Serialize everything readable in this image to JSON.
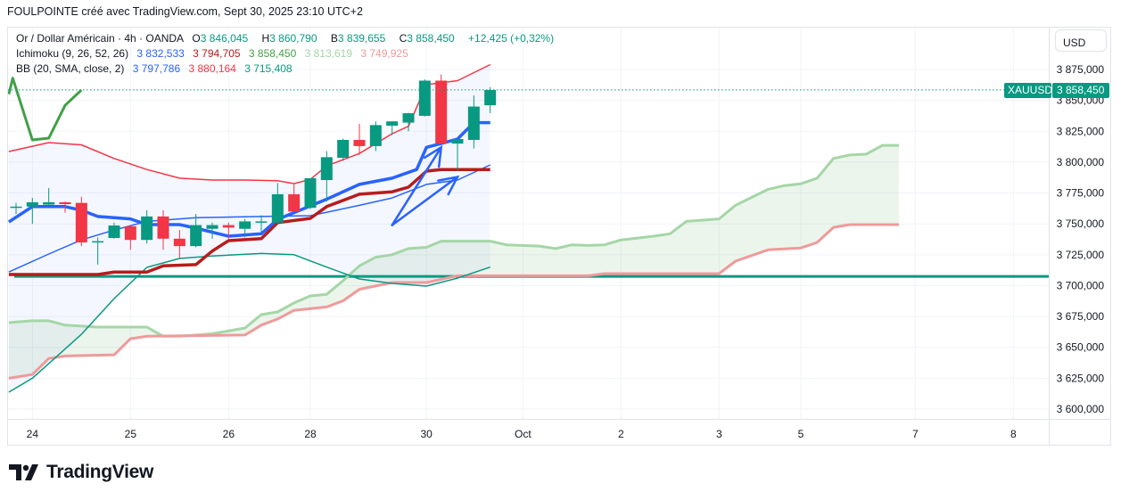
{
  "header": {
    "title": "FOULPOINTE créé avec TradingView.com, Sept 30, 2025 23:10 UTC+2"
  },
  "legend": {
    "symbol": "Or / Dollar Américain · 4h · OANDA",
    "open_label": "O",
    "open": "3 846,045",
    "high_label": "H",
    "high": "3 860,790",
    "low_label": "B",
    "low": "3 839,655",
    "close_label": "C",
    "close": "3 858,450",
    "change": "+12,425 (+0,32%)",
    "ichimoku_label": "Ichimoku (9, 26, 52, 26)",
    "ichimoku_values": [
      "3 832,533",
      "3 794,705",
      "3 858,450",
      "3 813,619",
      "3 749,925"
    ],
    "bb_label": "BB (20, SMA, close, 2)",
    "bb_values": [
      "3 797,786",
      "3 880,164",
      "3 715,408"
    ]
  },
  "currency_button": "USD",
  "price_tag": {
    "symbol": "XAUUSD",
    "price": "3 858,450"
  },
  "colors": {
    "up": "#089981",
    "down": "#f23645",
    "tenkan": "#2962ff",
    "kijun": "#b71c1c",
    "chikou": "#43a047",
    "spanA": "#a5d6a7",
    "spanB": "#ef9a9a",
    "bb_basis": "#2962ff",
    "bb_upper": "#f23645",
    "bb_lower": "#089981"
  },
  "brand": "TradingView",
  "chart_data": {
    "type": "candlestick",
    "title": "Or / Dollar Américain · 4h · OANDA",
    "ylim": [
      3590,
      3890
    ],
    "y_ticks": [
      "3 875,000",
      "3 850,000",
      "3 825,000",
      "3 800,000",
      "3 775,000",
      "3 750,000",
      "3 725,000",
      "3 700,000",
      "3 675,000",
      "3 650,000",
      "3 625,000",
      "3 600,000"
    ],
    "y_tick_values": [
      3875,
      3850,
      3825,
      3800,
      3775,
      3750,
      3725,
      3700,
      3675,
      3650,
      3625,
      3600
    ],
    "x_ticks": [
      {
        "label": "24",
        "bar": 1
      },
      {
        "label": "25",
        "bar": 7
      },
      {
        "label": "26",
        "bar": 13
      },
      {
        "label": "28",
        "bar": 18
      },
      {
        "label": "30",
        "bar": 25.1
      },
      {
        "label": "Oct",
        "bar": 31
      },
      {
        "label": "2",
        "bar": 37
      },
      {
        "label": "3",
        "bar": 43
      },
      {
        "label": "5",
        "bar": 48
      },
      {
        "label": "7",
        "bar": 55
      },
      {
        "label": "8",
        "bar": 61
      }
    ],
    "candles_ohlc": [
      [
        3764,
        3767,
        3758,
        3764
      ],
      [
        3764,
        3771,
        3750,
        3767.5
      ],
      [
        3765.6,
        3779,
        3765,
        3767.5
      ],
      [
        3767.5,
        3768,
        3759,
        3766
      ],
      [
        3767,
        3772,
        3732,
        3735
      ],
      [
        3736,
        3739,
        3717,
        3736
      ],
      [
        3738.6,
        3751,
        3738,
        3748.7
      ],
      [
        3748,
        3748.5,
        3729,
        3737
      ],
      [
        3737,
        3761,
        3734,
        3756
      ],
      [
        3756,
        3761,
        3729,
        3738
      ],
      [
        3738,
        3745,
        3722,
        3732
      ],
      [
        3732,
        3758,
        3731,
        3749
      ],
      [
        3746,
        3751,
        3738,
        3749
      ],
      [
        3749,
        3751,
        3738,
        3747
      ],
      [
        3746,
        3754,
        3739,
        3752
      ],
      [
        3752,
        3757,
        3743,
        3752
      ],
      [
        3751,
        3783,
        3750,
        3774
      ],
      [
        3774,
        3782,
        3760,
        3760
      ],
      [
        3763,
        3787,
        3762,
        3787
      ],
      [
        3785.5,
        3809,
        3768,
        3804
      ],
      [
        3803.5,
        3819,
        3801,
        3818
      ],
      [
        3818,
        3831,
        3806,
        3813
      ],
      [
        3813,
        3833,
        3809,
        3830
      ],
      [
        3829.5,
        3833,
        3822,
        3833
      ],
      [
        3832,
        3840,
        3825,
        3839.6
      ],
      [
        3837.5,
        3867,
        3837,
        3866
      ],
      [
        3866,
        3871,
        3815,
        3815
      ],
      [
        3815,
        3819,
        3793,
        3818.7
      ],
      [
        3818,
        3854,
        3811,
        3845
      ],
      [
        3846.045,
        3860.79,
        3839.655,
        3858.45
      ]
    ],
    "last_price": 3858.45,
    "horizontal_line": 3707.5,
    "series": [
      {
        "name": "Tenkan",
        "width": 3.5,
        "color": "#2962ff",
        "points": [
          [
            -0.44,
            3751.6
          ],
          [
            1,
            3764
          ],
          [
            3,
            3764
          ],
          [
            4,
            3761
          ],
          [
            5,
            3756
          ],
          [
            7,
            3754
          ],
          [
            8,
            3749.4
          ],
          [
            10,
            3749.4
          ],
          [
            11,
            3746.5
          ],
          [
            13,
            3740
          ],
          [
            15,
            3742
          ],
          [
            16,
            3753.7
          ],
          [
            19,
            3770
          ],
          [
            21,
            3782
          ],
          [
            23,
            3787
          ],
          [
            24.5,
            3794
          ],
          [
            25.1,
            3812
          ],
          [
            26,
            3815
          ],
          [
            27,
            3818.7
          ],
          [
            28,
            3832
          ],
          [
            29,
            3832
          ]
        ]
      },
      {
        "name": "Kijun",
        "width": 3.5,
        "color": "#b71c1c",
        "points": [
          [
            -0.44,
            3709
          ],
          [
            5,
            3709
          ],
          [
            6,
            3711
          ],
          [
            8,
            3711
          ],
          [
            9,
            3716
          ],
          [
            11,
            3717
          ],
          [
            12,
            3728
          ],
          [
            13,
            3736.4
          ],
          [
            15,
            3738
          ],
          [
            16,
            3751
          ],
          [
            18,
            3754.5
          ],
          [
            19,
            3764
          ],
          [
            21,
            3774
          ],
          [
            23,
            3776
          ],
          [
            24,
            3779.7
          ],
          [
            25.1,
            3792.7
          ],
          [
            26,
            3794
          ],
          [
            29,
            3794
          ]
        ]
      },
      {
        "name": "BB basis",
        "width": 1.5,
        "color": "#2962ff",
        "points": [
          [
            -0.44,
            3711
          ],
          [
            2,
            3725.6
          ],
          [
            4,
            3737
          ],
          [
            6,
            3745
          ],
          [
            8,
            3752
          ],
          [
            11,
            3755
          ],
          [
            15,
            3756
          ],
          [
            18,
            3756.6
          ],
          [
            21,
            3765
          ],
          [
            23,
            3771
          ],
          [
            25.1,
            3782
          ],
          [
            27,
            3785.5
          ],
          [
            29,
            3797.8
          ]
        ]
      },
      {
        "name": "BB upper",
        "width": 1.5,
        "color": "#f23645",
        "points": [
          [
            -0.44,
            3808.6
          ],
          [
            2,
            3815.8
          ],
          [
            4,
            3814
          ],
          [
            6,
            3803
          ],
          [
            8,
            3794
          ],
          [
            10,
            3787
          ],
          [
            12,
            3785.5
          ],
          [
            14,
            3785.5
          ],
          [
            16,
            3785
          ],
          [
            17,
            3782.6
          ],
          [
            18,
            3786
          ],
          [
            19,
            3797
          ],
          [
            21,
            3807
          ],
          [
            23,
            3823
          ],
          [
            24,
            3829
          ],
          [
            25.1,
            3862.7
          ],
          [
            27,
            3866
          ],
          [
            29,
            3879
          ]
        ]
      },
      {
        "name": "BB lower",
        "width": 1.5,
        "color": "#089981",
        "points": [
          [
            -0.44,
            3613.7
          ],
          [
            1,
            3625
          ],
          [
            4,
            3660.6
          ],
          [
            6,
            3689.5
          ],
          [
            8,
            3714.8
          ],
          [
            10,
            3722
          ],
          [
            12,
            3724
          ],
          [
            15,
            3726
          ],
          [
            17,
            3725
          ],
          [
            19,
            3715
          ],
          [
            21,
            3705.4
          ],
          [
            23,
            3701.8
          ],
          [
            25.1,
            3699.6
          ],
          [
            27,
            3706
          ],
          [
            29,
            3715
          ]
        ]
      },
      {
        "name": "Chikou",
        "width": 3,
        "color": "#43a047",
        "points": [
          [
            -0.44,
            3855
          ],
          [
            -0.2,
            3868
          ],
          [
            1,
            3818
          ],
          [
            2,
            3819.4
          ],
          [
            3,
            3846
          ],
          [
            4,
            3858.4
          ]
        ]
      },
      {
        "name": "Senkou A",
        "width": 3,
        "color": "#a5d6a7",
        "points": [
          [
            -0.44,
            3670
          ],
          [
            1,
            3671.5
          ],
          [
            2,
            3671.5
          ],
          [
            3,
            3668
          ],
          [
            5,
            3666.4
          ],
          [
            8,
            3666.4
          ],
          [
            9,
            3659
          ],
          [
            10,
            3659
          ],
          [
            12,
            3661
          ],
          [
            14,
            3665.7
          ],
          [
            15,
            3676.5
          ],
          [
            16,
            3678.7
          ],
          [
            17,
            3686
          ],
          [
            18,
            3691.7
          ],
          [
            19,
            3693
          ],
          [
            20,
            3704
          ],
          [
            21,
            3716
          ],
          [
            22,
            3723
          ],
          [
            23,
            3725
          ],
          [
            24,
            3730
          ],
          [
            25.1,
            3731
          ],
          [
            26,
            3736
          ],
          [
            29,
            3736
          ],
          [
            30,
            3733
          ],
          [
            32,
            3732
          ],
          [
            33,
            3730
          ],
          [
            34,
            3733
          ],
          [
            35,
            3732.5
          ],
          [
            36,
            3733
          ],
          [
            37,
            3737
          ],
          [
            39,
            3740
          ],
          [
            40,
            3742
          ],
          [
            41,
            3752
          ],
          [
            43,
            3754
          ],
          [
            44,
            3765
          ],
          [
            46,
            3778
          ],
          [
            47,
            3781
          ],
          [
            48,
            3782.5
          ],
          [
            49,
            3787
          ],
          [
            50,
            3803
          ],
          [
            51,
            3805.8
          ],
          [
            52,
            3806.4
          ],
          [
            53,
            3813.6
          ],
          [
            54,
            3813.6
          ]
        ]
      },
      {
        "name": "Senkou B",
        "width": 3,
        "color": "#ef9a9a",
        "points": [
          [
            -0.44,
            3625
          ],
          [
            1,
            3628
          ],
          [
            2,
            3641
          ],
          [
            3,
            3643
          ],
          [
            6,
            3644
          ],
          [
            7,
            3657
          ],
          [
            8,
            3659
          ],
          [
            14,
            3660
          ],
          [
            15,
            3668
          ],
          [
            16,
            3673
          ],
          [
            17,
            3680
          ],
          [
            19,
            3682.7
          ],
          [
            20,
            3687.7
          ],
          [
            21,
            3697
          ],
          [
            23,
            3702.5
          ],
          [
            25.1,
            3702.5
          ],
          [
            27,
            3708
          ],
          [
            35,
            3708
          ],
          [
            36,
            3709.7
          ],
          [
            43,
            3709.7
          ],
          [
            44,
            3719.8
          ],
          [
            46,
            3729
          ],
          [
            48,
            3730.5
          ],
          [
            49,
            3735
          ],
          [
            50,
            3747.2
          ],
          [
            51,
            3749.4
          ],
          [
            54,
            3749.4
          ]
        ]
      }
    ],
    "drawing_arrows": [
      {
        "from": [
          23,
          3749
        ],
        "to": [
          26,
          3812
        ]
      },
      {
        "from": [
          23,
          3749
        ],
        "to": [
          27,
          3788
        ]
      }
    ]
  }
}
